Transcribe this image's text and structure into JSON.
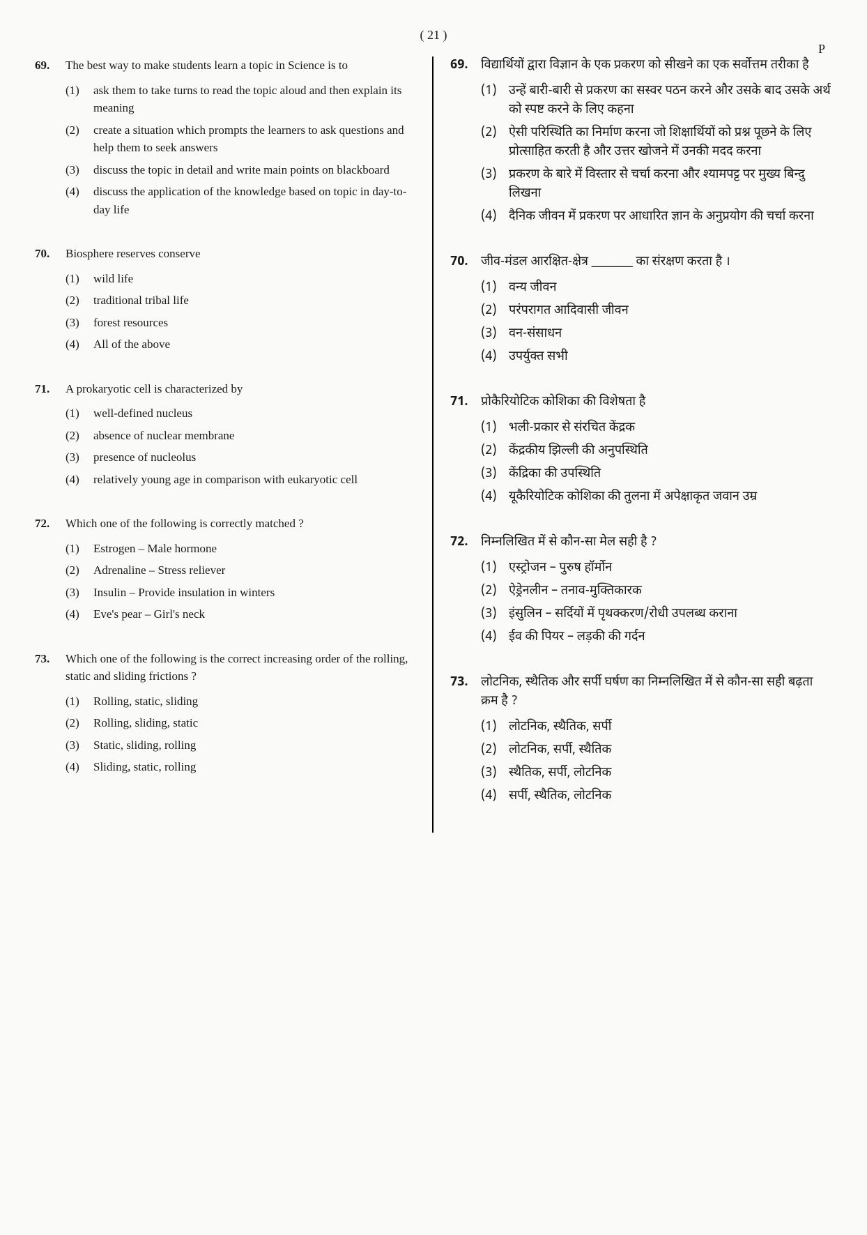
{
  "page_number": "( 21 )",
  "page_marker": "P",
  "left_questions": [
    {
      "num": "69.",
      "stem": "The best way to make students learn a topic in Science is to",
      "options": [
        {
          "n": "(1)",
          "t": "ask them to take turns to read the topic aloud and then explain its meaning"
        },
        {
          "n": "(2)",
          "t": "create a situation which prompts the learners to ask questions and help them to seek answers"
        },
        {
          "n": "(3)",
          "t": "discuss the topic in detail and write main points on blackboard"
        },
        {
          "n": "(4)",
          "t": "discuss the application of the knowledge based on topic in day-to-day life"
        }
      ]
    },
    {
      "num": "70.",
      "stem": "Biosphere reserves conserve",
      "options": [
        {
          "n": "(1)",
          "t": "wild life"
        },
        {
          "n": "(2)",
          "t": "traditional tribal life"
        },
        {
          "n": "(3)",
          "t": "forest resources"
        },
        {
          "n": "(4)",
          "t": "All of the above"
        }
      ]
    },
    {
      "num": "71.",
      "stem": "A prokaryotic cell is characterized by",
      "options": [
        {
          "n": "(1)",
          "t": "well-defined nucleus"
        },
        {
          "n": "(2)",
          "t": "absence of nuclear membrane"
        },
        {
          "n": "(3)",
          "t": "presence of nucleolus"
        },
        {
          "n": "(4)",
          "t": "relatively young age in comparison with eukaryotic cell"
        }
      ]
    },
    {
      "num": "72.",
      "stem": "Which one of the following is correctly matched ?",
      "options": [
        {
          "n": "(1)",
          "t": "Estrogen – Male hormone"
        },
        {
          "n": "(2)",
          "t": "Adrenaline – Stress reliever"
        },
        {
          "n": "(3)",
          "t": "Insulin – Provide insulation in winters"
        },
        {
          "n": "(4)",
          "t": "Eve's pear – Girl's neck"
        }
      ]
    },
    {
      "num": "73.",
      "stem": "Which one of the following is the correct increasing order of the rolling, static and sliding frictions ?",
      "options": [
        {
          "n": "(1)",
          "t": "Rolling, static, sliding"
        },
        {
          "n": "(2)",
          "t": "Rolling, sliding, static"
        },
        {
          "n": "(3)",
          "t": "Static, sliding, rolling"
        },
        {
          "n": "(4)",
          "t": "Sliding, static, rolling"
        }
      ]
    }
  ],
  "right_questions": [
    {
      "num": "69.",
      "stem": "विद्यार्थियों द्वारा विज्ञान के एक प्रकरण को सीखने का एक सर्वोत्तम तरीका है",
      "options": [
        {
          "n": "(1)",
          "t": "उन्हें बारी-बारी से प्रकरण का सस्वर पठन करने और उसके बाद उसके अर्थ को स्पष्ट करने के लिए कहना"
        },
        {
          "n": "(2)",
          "t": "ऐसी परिस्थिति का निर्माण करना जो शिक्षार्थियों को प्रश्न पूछने के लिए प्रोत्साहित करती है और उत्तर खोजने में उनकी मदद करना"
        },
        {
          "n": "(3)",
          "t": "प्रकरण के बारे में विस्तार से चर्चा करना और श्यामपट्ट पर मुख्य बिन्दु लिखना"
        },
        {
          "n": "(4)",
          "t": "दैनिक जीवन में प्रकरण पर आधारित ज्ञान के अनुप्रयोग की चर्चा करना"
        }
      ]
    },
    {
      "num": "70.",
      "stem": "जीव-मंडल आरक्षित-क्षेत्र ________ का संरक्षण करता है ।",
      "options": [
        {
          "n": "(1)",
          "t": "वन्य जीवन"
        },
        {
          "n": "(2)",
          "t": "परंपरागत आदिवासी जीवन"
        },
        {
          "n": "(3)",
          "t": "वन-संसाधन"
        },
        {
          "n": "(4)",
          "t": "उपर्युक्त सभी"
        }
      ]
    },
    {
      "num": "71.",
      "stem": "प्रोकैरियोटिक कोशिका की विशेषता है",
      "options": [
        {
          "n": "(1)",
          "t": "भली-प्रकार से संरचित केंद्रक"
        },
        {
          "n": "(2)",
          "t": "केंद्रकीय झिल्ली की अनुपस्थिति"
        },
        {
          "n": "(3)",
          "t": "केंद्रिका की उपस्थिति"
        },
        {
          "n": "(4)",
          "t": "यूकैरियोटिक कोशिका की तुलना में अपेक्षाकृत जवान उम्र"
        }
      ]
    },
    {
      "num": "72.",
      "stem": "निम्नलिखित में से कौन-सा मेल सही है ?",
      "options": [
        {
          "n": "(1)",
          "t": "एस्ट्रोजन – पुरुष हॉर्मोन"
        },
        {
          "n": "(2)",
          "t": "ऐड्रेनलीन – तनाव-मुक्तिकारक"
        },
        {
          "n": "(3)",
          "t": "इंसुलिन – सर्दियों में पृथक्करण/रोधी उपलब्ध कराना"
        },
        {
          "n": "(4)",
          "t": "ईव की पियर – लड़की की गर्दन"
        }
      ]
    },
    {
      "num": "73.",
      "stem": "लोटनिक, स्थैतिक और सर्पी घर्षण का निम्नलिखित में से कौन-सा सही बढ़ता क्रम है ?",
      "options": [
        {
          "n": "(1)",
          "t": "लोटनिक, स्थैतिक, सर्पी"
        },
        {
          "n": "(2)",
          "t": "लोटनिक, सर्पी, स्थैतिक"
        },
        {
          "n": "(3)",
          "t": "स्थैतिक, सर्पी, लोटनिक"
        },
        {
          "n": "(4)",
          "t": "सर्पी, स्थैतिक, लोटनिक"
        }
      ]
    }
  ]
}
